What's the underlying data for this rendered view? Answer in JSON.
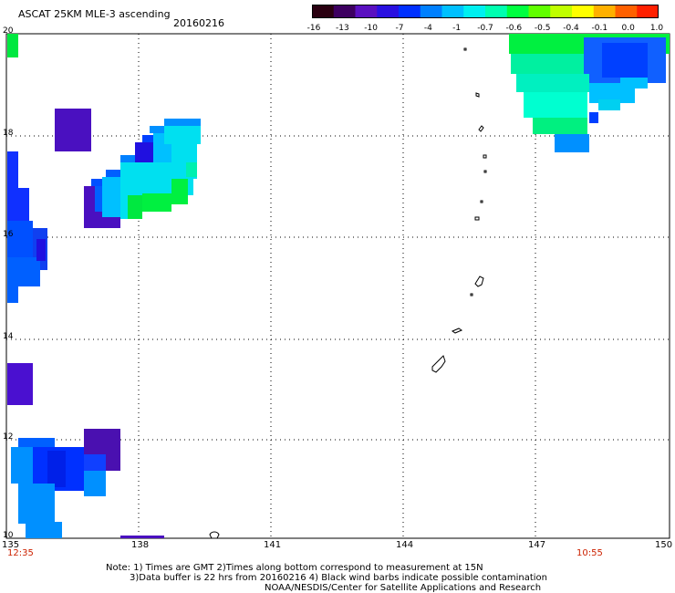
{
  "header": {
    "title": "ASCAT 25KM MLE-3 ascending",
    "date": "20160216"
  },
  "colorbar": {
    "ticks": [
      "-16",
      "-13",
      "-10",
      "-7",
      "-4",
      "-1",
      "-0.7",
      "-0.6",
      "-0.5",
      "-0.4",
      "-0.1",
      "0.0",
      "1.0"
    ],
    "colors": [
      "#2a0010",
      "#3d0060",
      "#5a10c0",
      "#2a10e0",
      "#0030ff",
      "#0080ff",
      "#00c0ff",
      "#00f0f0",
      "#00ffb0",
      "#00ff40",
      "#60ff00",
      "#c0ff00",
      "#ffff00",
      "#ffb000",
      "#ff6000",
      "#ff2000"
    ]
  },
  "axes": {
    "lat_labels": [
      "20",
      "18",
      "16",
      "14",
      "12",
      "10"
    ],
    "lon_labels": [
      "135",
      "138",
      "141",
      "144",
      "147",
      "150"
    ]
  },
  "times": {
    "left": "12:35",
    "right": "10:55"
  },
  "notes": {
    "line1": "Note: 1) Times are GMT 2)Times along bottom correspond to measurement at 15N",
    "line2": "3)Data buffer is 22 hrs from 20160216 4) Black wind barbs indicate possible contamination",
    "line3": "NOAA/NESDIS/Center for Satellite Applications and Research"
  }
}
